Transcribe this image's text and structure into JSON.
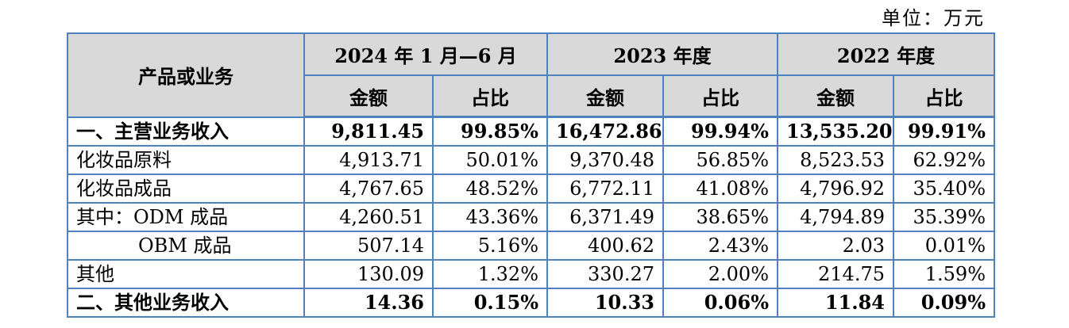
{
  "unit_label": "单位：万元",
  "header": {
    "product_label": "产品或业务",
    "periods": [
      "2024 年 1 月—6 月",
      "2023 年度",
      "2022 年度"
    ],
    "amount_label": "金额",
    "ratio_label": "占比"
  },
  "rows": [
    {
      "label": "一、主营业务收入",
      "values": [
        "9,811.45",
        "99.85%",
        "16,472.86",
        "99.94%",
        "13,535.20",
        "99.91%"
      ]
    },
    {
      "label": "化妆品原料",
      "values": [
        "4,913.71",
        "50.01%",
        "9,370.48",
        "56.85%",
        "8,523.53",
        "62.92%"
      ]
    },
    {
      "label": "化妆品成品",
      "values": [
        "4,767.65",
        "48.52%",
        "6,772.11",
        "41.08%",
        "4,796.92",
        "35.40%"
      ]
    },
    {
      "label": "其中：ODM 成品",
      "values": [
        "4,260.51",
        "43.36%",
        "6,371.49",
        "38.65%",
        "4,794.89",
        "35.39%"
      ]
    },
    {
      "label": "OBM 成品",
      "values": [
        "507.14",
        "5.16%",
        "400.62",
        "2.43%",
        "2.03",
        "0.01%"
      ]
    },
    {
      "label": "其他",
      "values": [
        "130.09",
        "1.32%",
        "330.27",
        "2.00%",
        "214.75",
        "1.59%"
      ]
    },
    {
      "label": "二、其他业务收入",
      "values": [
        "14.36",
        "0.15%",
        "10.33",
        "0.06%",
        "11.84",
        "0.09%"
      ]
    }
  ]
}
